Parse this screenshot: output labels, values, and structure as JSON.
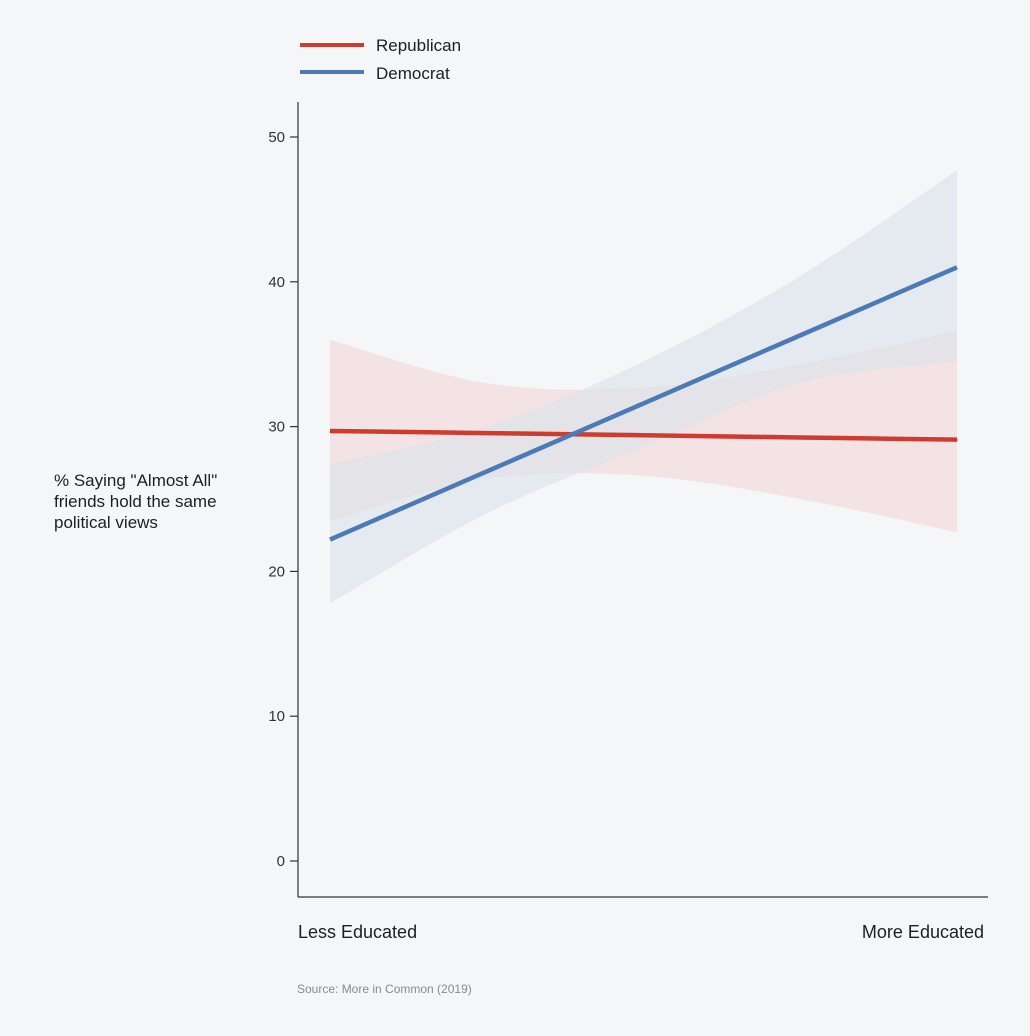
{
  "chart_data": {
    "type": "line",
    "ylabel": "% Saying \"Almost All\" friends hold the same political views",
    "categories": [
      "Less Educated",
      "More Educated"
    ],
    "ylim": [
      0,
      50
    ],
    "yticks": [
      0,
      10,
      20,
      30,
      40,
      50
    ],
    "grid": false,
    "legend_position": "top-left",
    "source": "Source: More in Common (2019)",
    "series": [
      {
        "name": "Republican",
        "color": "#d03b30",
        "band_color": "#f3d7d7",
        "x": [
          0,
          0.25,
          0.5,
          0.75,
          1
        ],
        "values": [
          29.7,
          29.55,
          29.4,
          29.25,
          29.1
        ],
        "lower": [
          23.5,
          26.4,
          26.6,
          25.0,
          22.7
        ],
        "upper": [
          36.0,
          33.0,
          32.7,
          34.3,
          36.6
        ]
      },
      {
        "name": "Democrat",
        "color": "#4a7ab8",
        "band_color": "#d8e3ea",
        "x": [
          0,
          0.25,
          0.5,
          0.75,
          1
        ],
        "values": [
          22.2,
          26.9,
          31.6,
          36.3,
          41.0
        ],
        "lower": [
          17.8,
          24.0,
          28.6,
          33.0,
          34.5
        ],
        "upper": [
          27.4,
          30.0,
          34.5,
          40.4,
          47.7
        ]
      }
    ]
  }
}
